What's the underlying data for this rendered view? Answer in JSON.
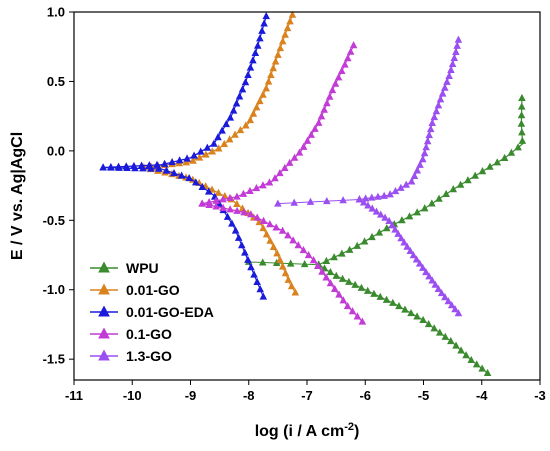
{
  "chart_data": {
    "type": "scatter",
    "title": "",
    "xlabel_main": "log (i / A cm",
    "xlabel_sup": "-2",
    "xlabel_end": ")",
    "ylabel": "E / V vs. Ag|AgCl",
    "xlim": [
      -11,
      -3
    ],
    "ylim": [
      -1.65,
      1.0
    ],
    "xticks": [
      -11,
      -10,
      -9,
      -8,
      -7,
      -6,
      -5,
      -4,
      -3
    ],
    "xtick_labels": [
      "-11",
      "-10",
      "-9",
      "-8",
      "-7",
      "-6",
      "-5",
      "-4",
      "-3"
    ],
    "yticks": [
      1.0,
      0.5,
      0.0,
      -0.5,
      -1.0,
      -1.5
    ],
    "ytick_labels": [
      "1.0",
      "0.5",
      "0.0",
      "-0.5",
      "-1.0",
      "-1.5"
    ],
    "grid": false,
    "legend_position": "bottom-left",
    "series": [
      {
        "name": "WPU",
        "color": "#3a8a2e",
        "anodic": [
          [
            -6.8,
            -0.82
          ],
          [
            -6.2,
            -0.7
          ],
          [
            -5.6,
            -0.55
          ],
          [
            -5.0,
            -0.42
          ],
          [
            -4.5,
            -0.28
          ],
          [
            -4.0,
            -0.15
          ],
          [
            -3.6,
            -0.05
          ],
          [
            -3.3,
            0.05
          ],
          [
            -3.32,
            0.2
          ],
          [
            -3.31,
            0.38
          ]
        ],
        "cathodic": [
          [
            -6.8,
            -0.82
          ],
          [
            -6.5,
            -0.9
          ],
          [
            -6.0,
            -1.0
          ],
          [
            -5.5,
            -1.1
          ],
          [
            -5.0,
            -1.22
          ],
          [
            -4.5,
            -1.38
          ],
          [
            -4.2,
            -1.5
          ],
          [
            -3.9,
            -1.6
          ]
        ],
        "flat": [
          [
            -8.0,
            -0.8
          ],
          [
            -6.8,
            -0.82
          ]
        ]
      },
      {
        "name": "0.01-GO",
        "color": "#d9821e",
        "anodic": [
          [
            -9.8,
            -0.12
          ],
          [
            -9.0,
            -0.08
          ],
          [
            -8.5,
            0.02
          ],
          [
            -8.0,
            0.2
          ],
          [
            -7.7,
            0.45
          ],
          [
            -7.45,
            0.75
          ],
          [
            -7.25,
            0.98
          ]
        ],
        "cathodic": [
          [
            -9.8,
            -0.12
          ],
          [
            -9.0,
            -0.2
          ],
          [
            -8.3,
            -0.35
          ],
          [
            -7.8,
            -0.52
          ],
          [
            -7.5,
            -0.75
          ],
          [
            -7.3,
            -0.95
          ],
          [
            -7.2,
            -1.02
          ]
        ],
        "flat": []
      },
      {
        "name": "0.01-GO-EDA",
        "color": "#1a1adb",
        "anodic": [
          [
            -10.5,
            -0.12
          ],
          [
            -9.5,
            -0.1
          ],
          [
            -9.0,
            -0.05
          ],
          [
            -8.6,
            0.05
          ],
          [
            -8.3,
            0.25
          ],
          [
            -8.05,
            0.5
          ],
          [
            -7.85,
            0.75
          ],
          [
            -7.7,
            0.97
          ]
        ],
        "cathodic": [
          [
            -10.5,
            -0.12
          ],
          [
            -9.5,
            -0.13
          ],
          [
            -9.0,
            -0.2
          ],
          [
            -8.6,
            -0.32
          ],
          [
            -8.25,
            -0.55
          ],
          [
            -8.0,
            -0.8
          ],
          [
            -7.75,
            -1.05
          ]
        ],
        "flat": []
      },
      {
        "name": "0.1-GO",
        "color": "#c23bd6",
        "anodic": [
          [
            -8.8,
            -0.38
          ],
          [
            -8.2,
            -0.33
          ],
          [
            -7.6,
            -0.22
          ],
          [
            -7.1,
            0.0
          ],
          [
            -6.8,
            0.2
          ],
          [
            -6.55,
            0.45
          ],
          [
            -6.35,
            0.62
          ],
          [
            -6.2,
            0.76
          ]
        ],
        "cathodic": [
          [
            -8.8,
            -0.38
          ],
          [
            -8.0,
            -0.45
          ],
          [
            -7.4,
            -0.58
          ],
          [
            -6.9,
            -0.78
          ],
          [
            -6.55,
            -0.98
          ],
          [
            -6.3,
            -1.12
          ],
          [
            -6.05,
            -1.23
          ]
        ],
        "flat": []
      },
      {
        "name": "1.3-GO",
        "color": "#9b4ff0",
        "anodic": [
          [
            -6.1,
            -0.35
          ],
          [
            -5.6,
            -0.32
          ],
          [
            -5.2,
            -0.22
          ],
          [
            -5.0,
            -0.05
          ],
          [
            -4.85,
            0.2
          ],
          [
            -4.7,
            0.38
          ],
          [
            -4.55,
            0.55
          ],
          [
            -4.45,
            0.7
          ],
          [
            -4.4,
            0.8
          ]
        ],
        "cathodic": [
          [
            -6.1,
            -0.35
          ],
          [
            -5.6,
            -0.5
          ],
          [
            -5.3,
            -0.68
          ],
          [
            -5.0,
            -0.85
          ],
          [
            -4.7,
            -1.02
          ],
          [
            -4.4,
            -1.17
          ]
        ],
        "flat": [
          [
            -7.5,
            -0.38
          ],
          [
            -6.1,
            -0.35
          ]
        ]
      }
    ]
  }
}
